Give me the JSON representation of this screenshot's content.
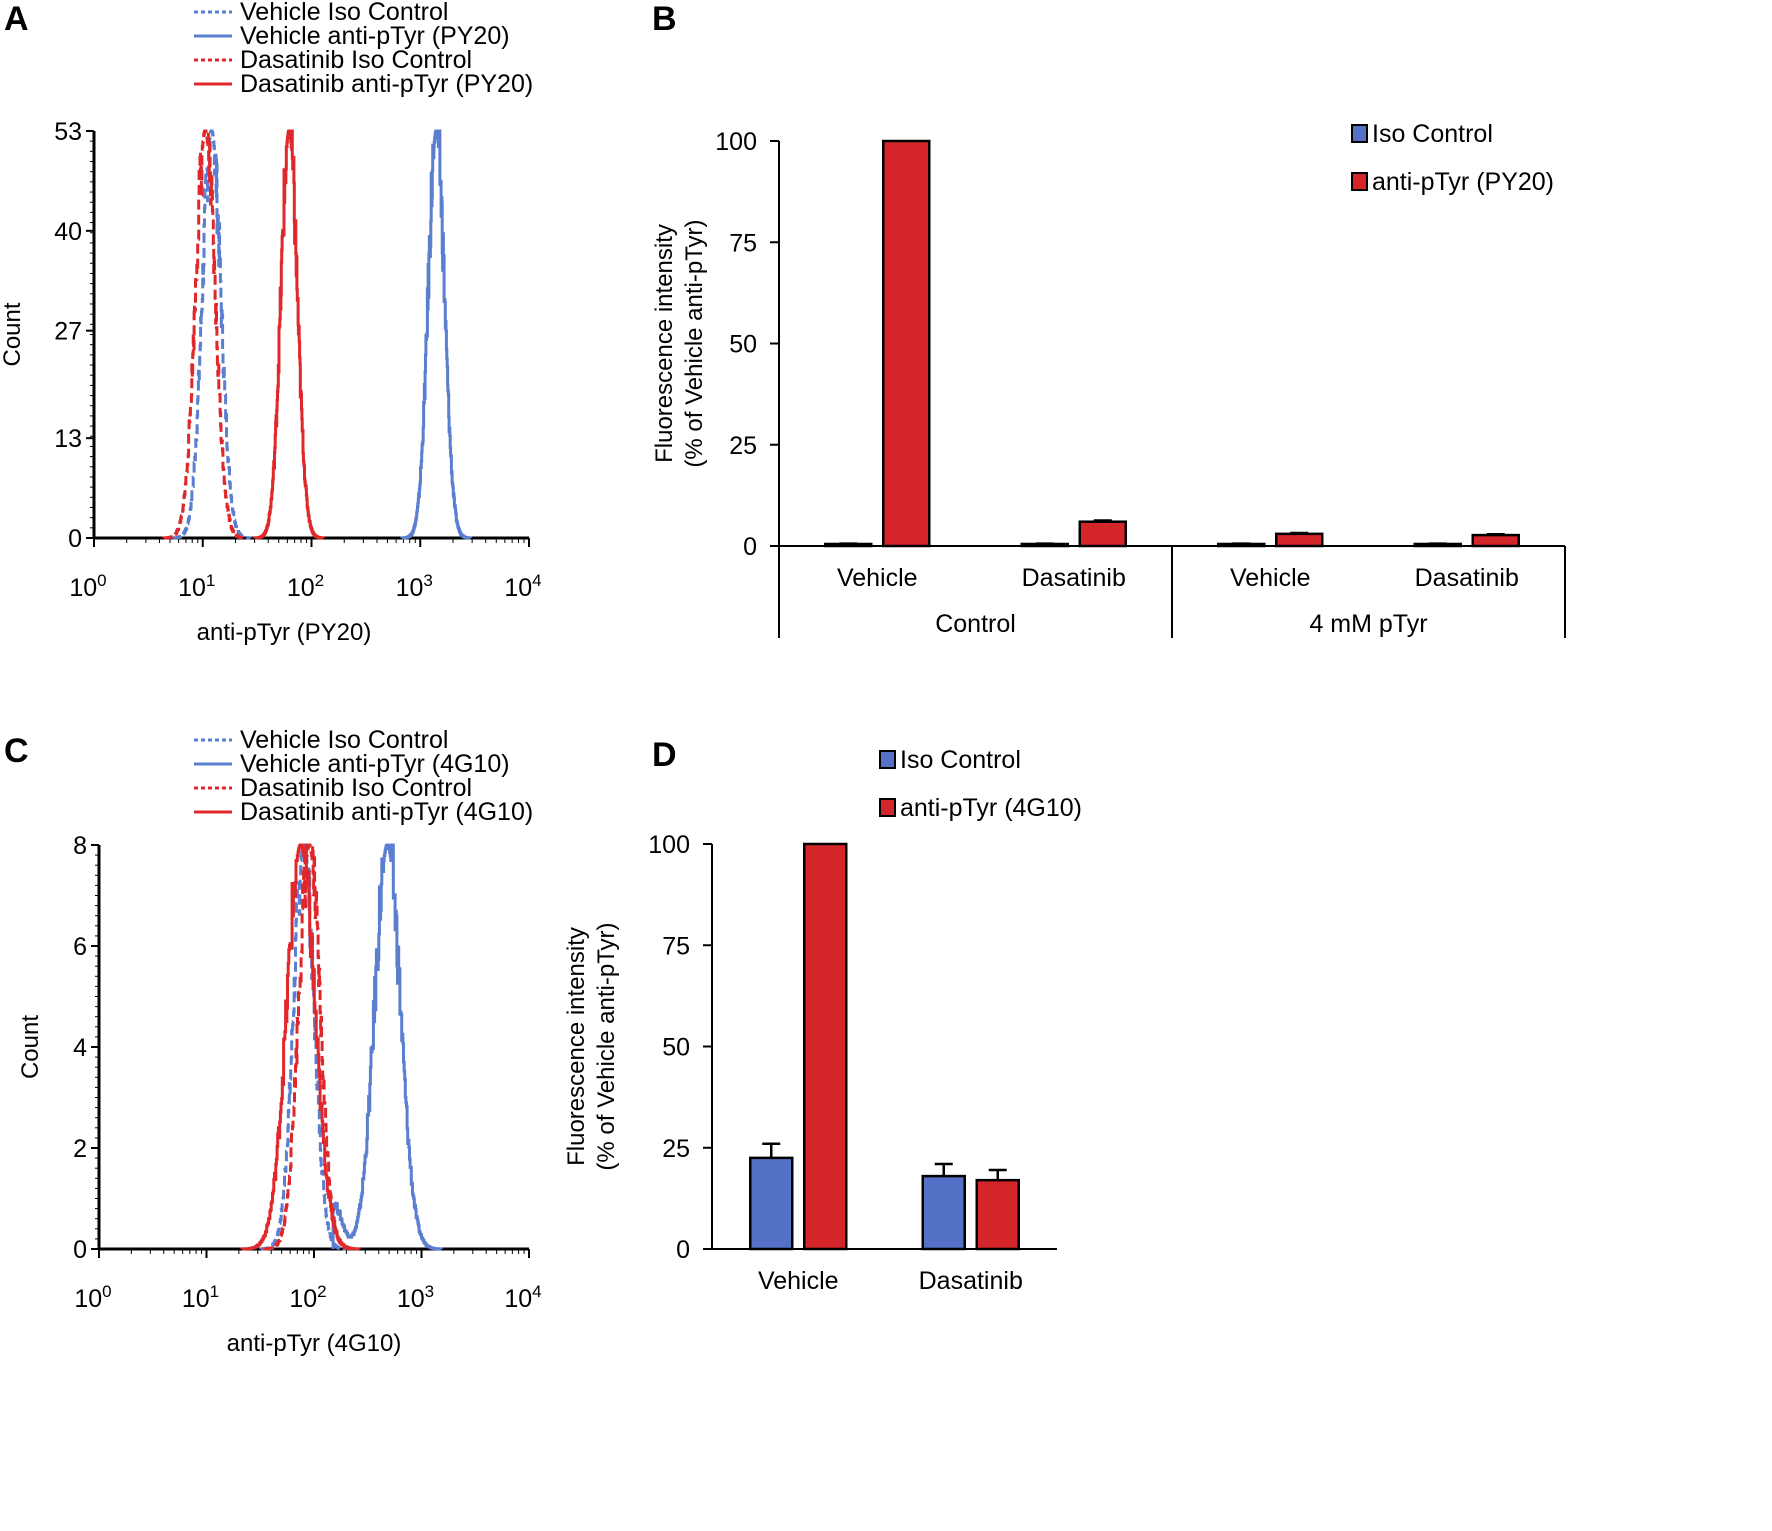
{
  "panels": {
    "A": {
      "letter": "A"
    },
    "B": {
      "letter": "B"
    },
    "C": {
      "letter": "C"
    },
    "D": {
      "letter": "D"
    }
  },
  "chart_data": [
    {
      "id": "A",
      "type": "line",
      "title": "",
      "xlabel": "anti-pTyr (PY20)",
      "ylabel": "Count",
      "xscale": "log",
      "xlim": [
        1,
        10000
      ],
      "ylim": [
        0,
        53
      ],
      "yticks": [
        "0",
        "13",
        "27",
        "40",
        "53"
      ],
      "ytick_values": [
        0,
        13,
        27,
        40,
        53
      ],
      "xticks": [
        {
          "base": "10",
          "exp": "0"
        },
        {
          "base": "10",
          "exp": "1"
        },
        {
          "base": "10",
          "exp": "2"
        },
        {
          "base": "10",
          "exp": "3"
        },
        {
          "base": "10",
          "exp": "4"
        }
      ],
      "legend_position": "top",
      "series": [
        {
          "name": "Vehicle Iso Control",
          "color": "#5b7fd0",
          "style": "dotted",
          "peak_x": 12,
          "peak_y": 53,
          "width": 0.085
        },
        {
          "name": "Vehicle anti-pTyr (PY20)",
          "color": "#5b7fd0",
          "style": "solid",
          "peak_x": 1400,
          "peak_y": 53,
          "width": 0.075
        },
        {
          "name": "Dasatinib Iso Control",
          "color": "#e0282c",
          "style": "dotted",
          "peak_x": 10.5,
          "peak_y": 53,
          "width": 0.09
        },
        {
          "name": "Dasatinib anti-pTyr (PY20)",
          "color": "#e0282c",
          "style": "solid",
          "peak_x": 62,
          "peak_y": 53,
          "width": 0.075
        }
      ]
    },
    {
      "id": "B",
      "type": "bar",
      "title": "",
      "xlabel": "",
      "ylabel": "Fluorescence intensity",
      "ylabel2": "(% of Vehicle anti-pTyr)",
      "ylim": [
        0,
        100
      ],
      "yticks": [
        "0",
        "25",
        "50",
        "75",
        "100"
      ],
      "ytick_values": [
        0,
        25,
        50,
        75,
        100
      ],
      "categories": [
        "Vehicle",
        "Dasatinib",
        "Vehicle",
        "Dasatinib"
      ],
      "groups": [
        {
          "label": "Control",
          "span": [
            0,
            1
          ]
        },
        {
          "label": "4 mM pTyr",
          "span": [
            2,
            3
          ]
        }
      ],
      "legend_position": "top-right",
      "series": [
        {
          "name": "Iso Control",
          "color": "#5471c8",
          "values": [
            0.5,
            0.5,
            0.5,
            0.5
          ],
          "errors": [
            0.1,
            0.1,
            0.1,
            0.1
          ]
        },
        {
          "name": "anti-pTyr (PY20)",
          "color": "#d4252b",
          "values": [
            100,
            6,
            3,
            2.7
          ],
          "errors": [
            0,
            0.3,
            0.2,
            0.2
          ]
        }
      ]
    },
    {
      "id": "C",
      "type": "line",
      "title": "",
      "xlabel": "anti-pTyr (4G10)",
      "ylabel": "Count",
      "xscale": "log",
      "xlim": [
        1,
        10000
      ],
      "ylim": [
        0,
        8
      ],
      "yticks": [
        "0",
        "2",
        "4",
        "6",
        "8"
      ],
      "ytick_values": [
        0,
        2,
        4,
        6,
        8
      ],
      "xticks": [
        {
          "base": "10",
          "exp": "0"
        },
        {
          "base": "10",
          "exp": "1"
        },
        {
          "base": "10",
          "exp": "2"
        },
        {
          "base": "10",
          "exp": "3"
        },
        {
          "base": "10",
          "exp": "4"
        }
      ],
      "legend_position": "top",
      "series": [
        {
          "name": "Vehicle Iso Control",
          "color": "#5b7fd0",
          "style": "dotted",
          "peak_x": 80,
          "peak_y": 8,
          "width": 0.095
        },
        {
          "name": "Vehicle anti-pTyr (4G10)",
          "color": "#5b7fd0",
          "style": "solid",
          "peak_x": 480,
          "peak_y": 8,
          "width": 0.12
        },
        {
          "name": "Dasatinib Iso Control",
          "color": "#e0282c",
          "style": "dotted",
          "peak_x": 90,
          "peak_y": 8,
          "width": 0.1
        },
        {
          "name": "Dasatinib anti-pTyr (4G10)",
          "color": "#e0282c",
          "style": "solid",
          "peak_x": 75,
          "peak_y": 8,
          "width": 0.13
        }
      ]
    },
    {
      "id": "D",
      "type": "bar",
      "title": "",
      "xlabel": "",
      "ylabel": "Fluorescence intensity",
      "ylabel2": "(% of Vehicle anti-pTyr)",
      "ylim": [
        0,
        100
      ],
      "yticks": [
        "0",
        "25",
        "50",
        "75",
        "100"
      ],
      "ytick_values": [
        0,
        25,
        50,
        75,
        100
      ],
      "categories": [
        "Vehicle",
        "Dasatinib"
      ],
      "legend_position": "top",
      "series": [
        {
          "name": "Iso Control",
          "color": "#5471c8",
          "values": [
            22.5,
            18
          ],
          "errors": [
            3.5,
            3
          ]
        },
        {
          "name": "anti-pTyr (4G10)",
          "color": "#d4252b",
          "values": [
            100,
            17
          ],
          "errors": [
            0,
            2.5
          ]
        }
      ]
    }
  ]
}
